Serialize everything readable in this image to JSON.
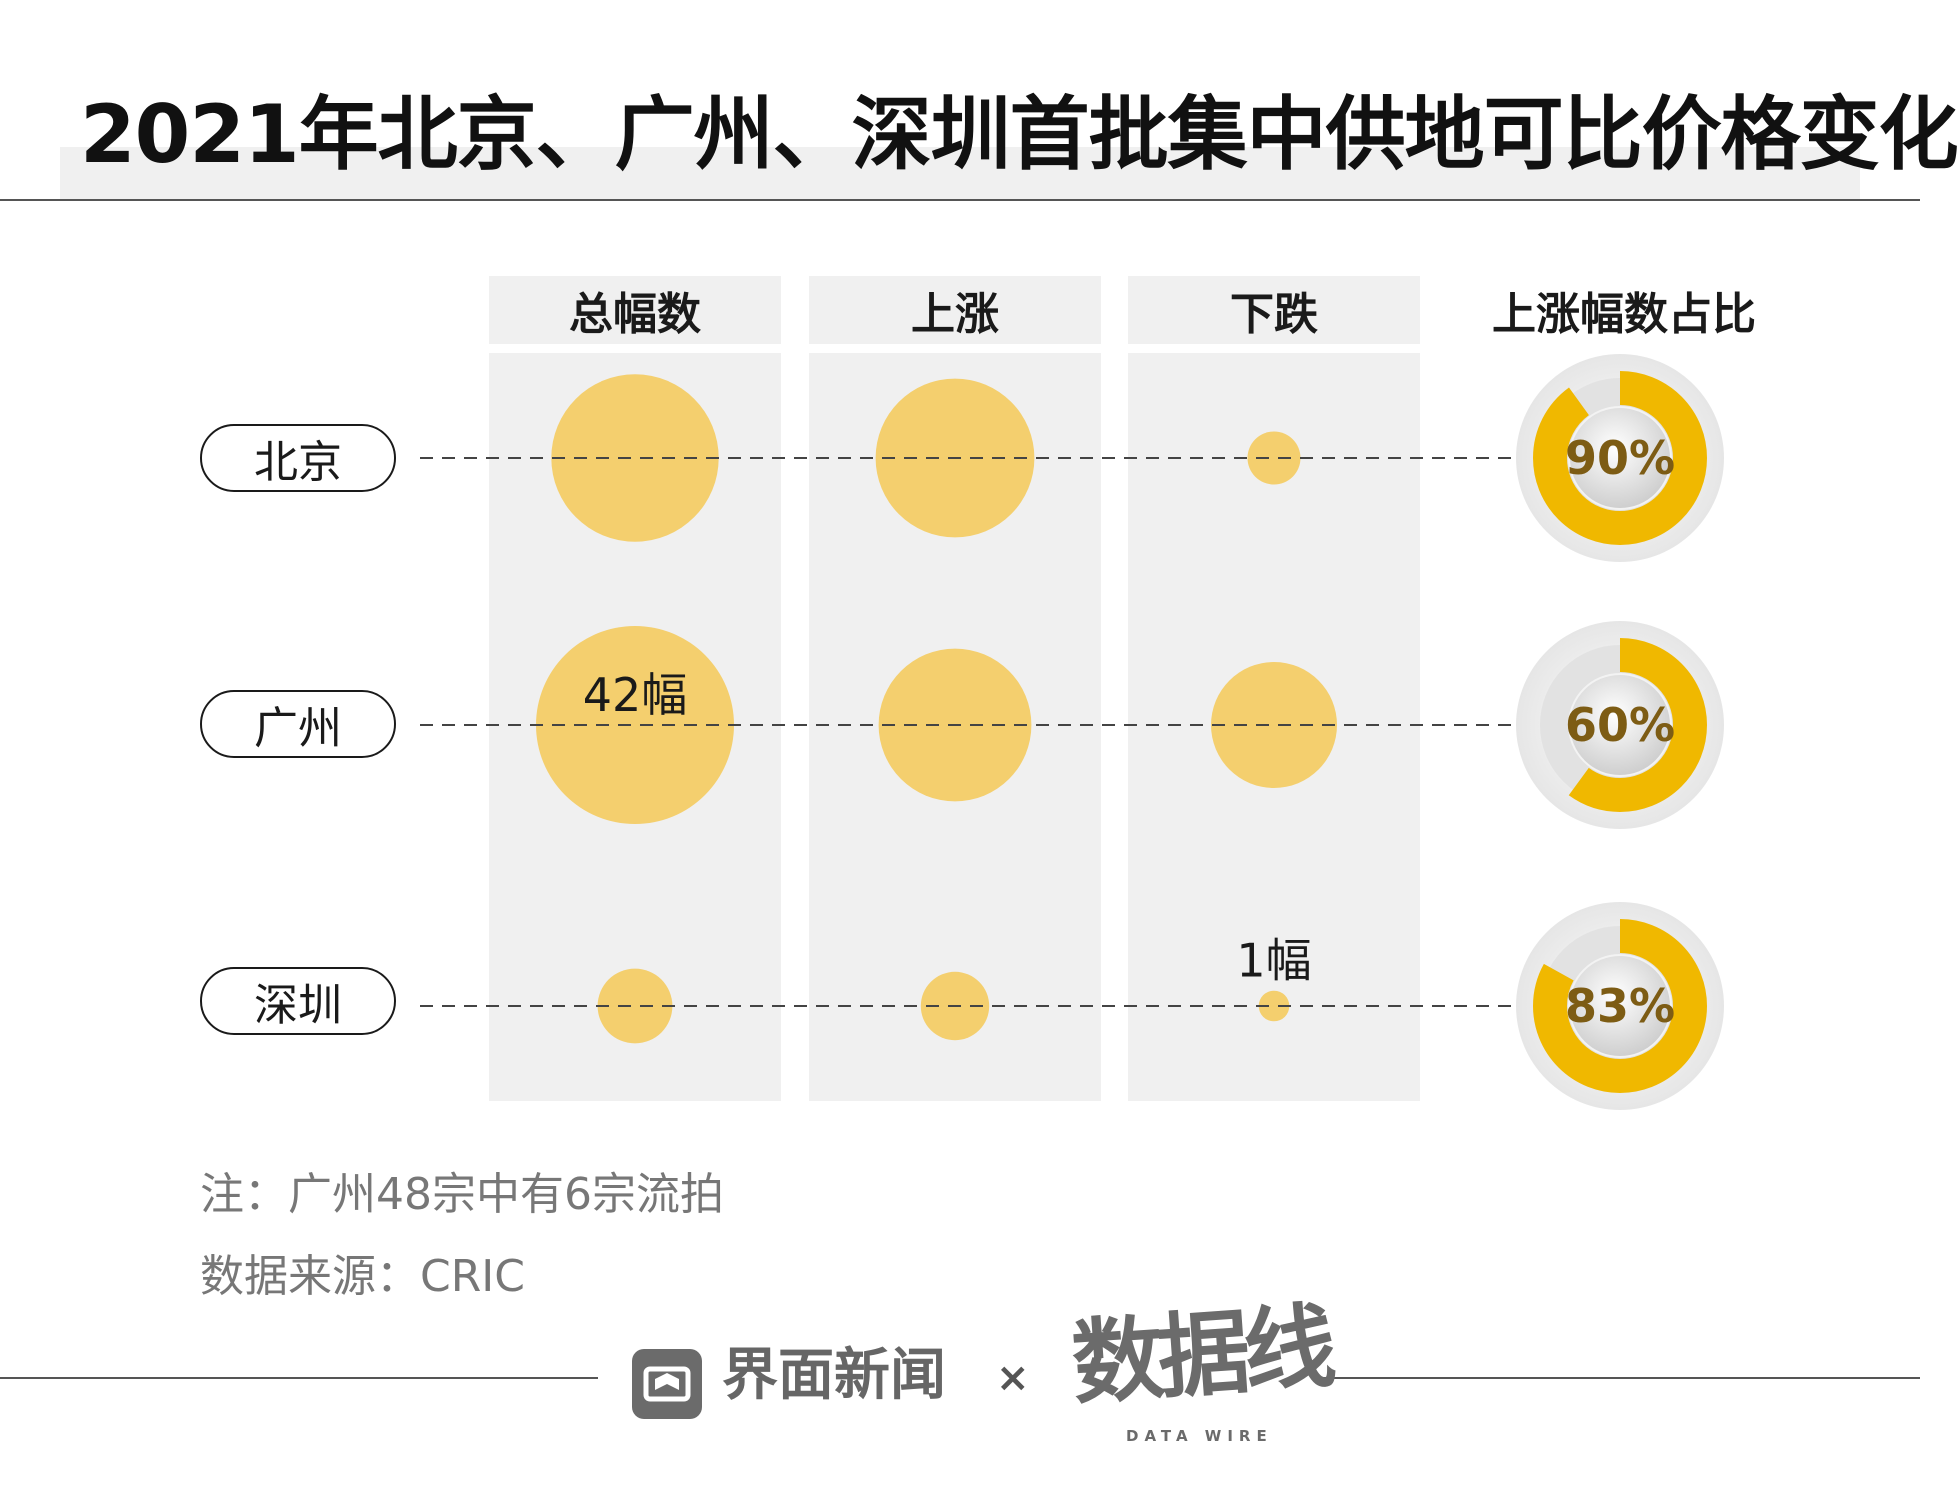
{
  "title": "2021年北京、广州、深圳首批集中供地可比价格变化",
  "chart_data": {
    "type": "bubble-matrix",
    "title": "2021年北京、广州、深圳首批集中供地可比价格变化",
    "columns": [
      "总幅数",
      "上涨",
      "下跌",
      "上涨幅数占比"
    ],
    "cities": [
      "北京",
      "广州",
      "深圳"
    ],
    "series": [
      {
        "name": "总幅数",
        "values": [
          30,
          42,
          6
        ]
      },
      {
        "name": "上涨",
        "values": [
          27,
          25,
          5
        ]
      },
      {
        "name": "下跌",
        "values": [
          3,
          17,
          1
        ]
      }
    ],
    "rise_share_percent": [
      90,
      60,
      83
    ],
    "bubble_labels": [
      {
        "column": "总幅数",
        "city": "广州",
        "text": "42幅"
      },
      {
        "column": "下跌",
        "city": "深圳",
        "text": "1幅"
      }
    ]
  },
  "notes": {
    "note": "注：广州48宗中有6宗流拍",
    "source": "数据来源：CRIC"
  },
  "footer": {
    "brand": "界面新闻",
    "times": "×",
    "partner": "数据线",
    "partner_sub": "DATA WIRE"
  },
  "colors": {
    "bubble": "#f4cf6e",
    "ring": "#f0b800",
    "percent_text": "#7d5c14",
    "panel": "#f0f0f0"
  }
}
